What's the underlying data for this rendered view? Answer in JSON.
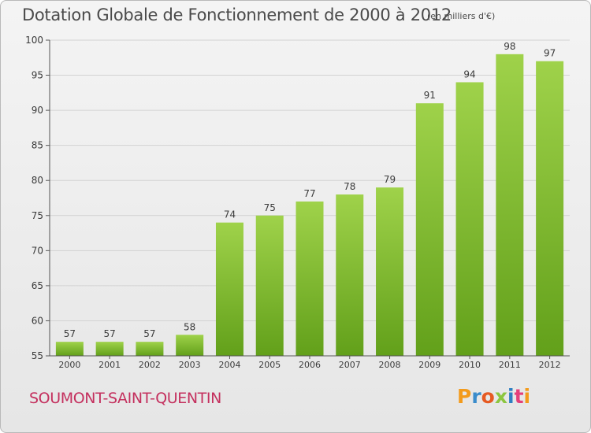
{
  "chart_data": {
    "type": "bar",
    "title": "Dotation Globale de Fonctionnement de 2000 à 2012",
    "subtitle": "(en milliers d'€)",
    "categories": [
      "2000",
      "2001",
      "2002",
      "2003",
      "2004",
      "2005",
      "2006",
      "2007",
      "2008",
      "2009",
      "2010",
      "2011",
      "2012"
    ],
    "values": [
      57,
      57,
      57,
      58,
      74,
      75,
      77,
      78,
      79,
      91,
      94,
      98,
      97
    ],
    "ylim": [
      55,
      100
    ],
    "yticks": [
      55,
      60,
      65,
      70,
      75,
      80,
      85,
      90,
      95,
      100
    ],
    "grid": true,
    "bar_color": "#7fbf2a"
  },
  "commune": "SOUMONT-SAINT-QUENTIN",
  "logo": {
    "letters": [
      "P",
      "r",
      "o",
      "x",
      "i",
      "t",
      "i"
    ]
  }
}
